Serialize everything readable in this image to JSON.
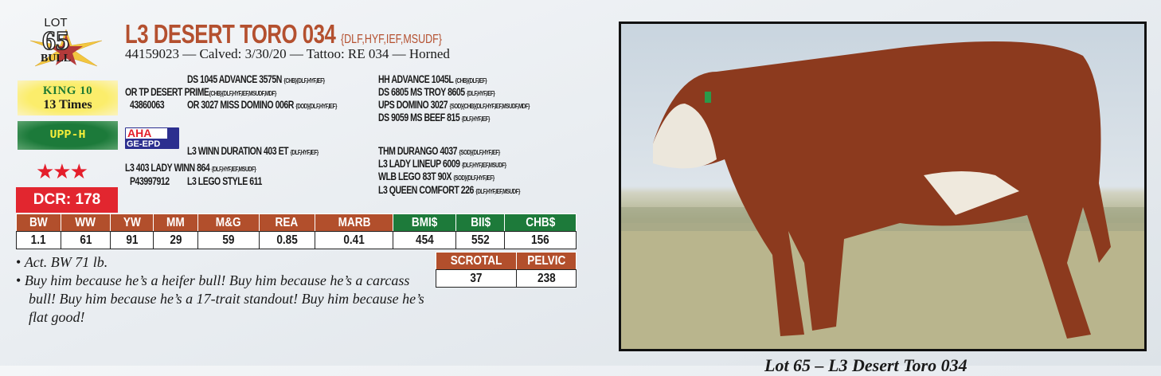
{
  "lot": {
    "label": "LOT",
    "number": "65",
    "type": "BULL"
  },
  "badges": {
    "king_line1": "KING 10",
    "king_line2": "13 Times",
    "upp": "UPP-H",
    "stars": "★★★",
    "dcr": "DCR: 178"
  },
  "title": {
    "name": "L3 DESERT TORO 034",
    "tags": "{DLF,HYF,IEF,MSUDF}"
  },
  "subtitle": "44159023 — Calved: 3/30/20 — Tattoo: RE 034 — Horned",
  "pedigree": {
    "sire": {
      "name": "OR TP DESERT PRIME",
      "tags": "{CHB}{DLF,HYF,IEF,MSUDF,MDF}",
      "reg": "43860063"
    },
    "sire_sire": {
      "name": "DS 1045 ADVANCE 3575N",
      "tags": "{CHB}{DLF,HYF,IEF}"
    },
    "sire_dam": {
      "name": "OR 3027 MISS DOMINO 006R",
      "tags": "{DOD}{DLF,HYF,IEF}"
    },
    "sss": {
      "name": "HH ADVANCE 1045L",
      "tags": "{CHB}{DLF,IEF}"
    },
    "ssd": {
      "name": "DS 6805 MS TROY 8605",
      "tags": "{DLF,HYF,IEF}"
    },
    "sds": {
      "name": "UPS DOMINO 3027",
      "tags": "{SOD}{CHB}{DLF,HYF,IEF,MSUDF,MDF}"
    },
    "sdd": {
      "name": "DS 9059 MS BEEF 815",
      "tags": "{DLF,HYF,IEF}"
    },
    "dam": {
      "name": "L3 403 LADY WINN 864",
      "tags": "{DLF,HYF,IEF,MSUDF}",
      "reg": "P43997912"
    },
    "dam_sire": {
      "name": "L3 WINN DURATION 403 ET",
      "tags": "{DLF,HYF,IEF}"
    },
    "dam_dam": {
      "name": "L3 LEGO STYLE 611",
      "tags": ""
    },
    "dss": {
      "name": "THM DURANGO 4037",
      "tags": "{SOD}{DLF,HYF,IEF}"
    },
    "dsd": {
      "name": "L3 LADY LINEUP 6009",
      "tags": "{DLF,HYF,IEF,MSUDF}"
    },
    "dds": {
      "name": "WLB LEGO 83T 90X",
      "tags": "{SOD}{DLF,HYF,IEF}"
    },
    "ddd": {
      "name": "L3 QUEEN COMFORT 226",
      "tags": "{DLF,HYF,IEF,MSUDF}"
    }
  },
  "logo": {
    "line1": "AHA",
    "line2": "GE-EPD"
  },
  "epd": {
    "headers": [
      "BW",
      "WW",
      "YW",
      "MM",
      "M&G",
      "REA",
      "MARB",
      "BMI$",
      "BII$",
      "CHB$"
    ],
    "values": [
      "1.1",
      "61",
      "91",
      "29",
      "59",
      "0.85",
      "0.41",
      "454",
      "552",
      "156"
    ]
  },
  "measures": {
    "headers": [
      "SCROTAL",
      "PELVIC"
    ],
    "values": [
      "37",
      "238"
    ]
  },
  "notes": [
    "Act. BW 71 lb.",
    "Buy him because he’s a heifer bull! Buy him because he’s a carcass bull! Buy him because he’s a 17-trait standout! Buy him because he’s flat good!"
  ],
  "caption": "Lot 65 – L3 Desert Toro 034",
  "colors": {
    "title": "#b4502f",
    "header_brown": "#b24f2c",
    "header_green": "#1d7a3a",
    "dcr_red": "#e2262f"
  }
}
